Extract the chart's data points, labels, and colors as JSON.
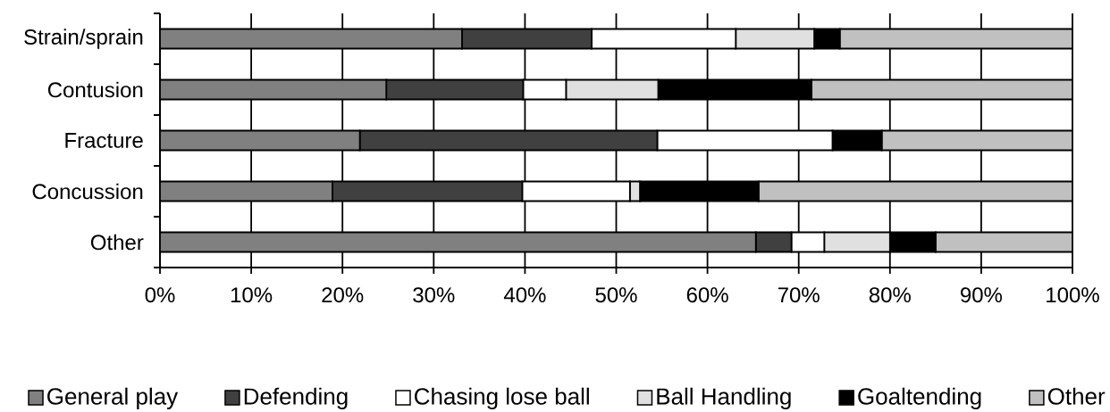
{
  "chart_data": {
    "type": "bar",
    "orientation": "horizontal",
    "stacked": true,
    "categories": [
      "Strain/sprain",
      "Contusion",
      "Fracture",
      "Concussion",
      "Other"
    ],
    "series": [
      {
        "name": "General play",
        "color": "#808080",
        "values": [
          33.1,
          24.8,
          21.9,
          18.9,
          65.3
        ]
      },
      {
        "name": "Defending",
        "color": "#404040",
        "values": [
          14.2,
          15.0,
          32.6,
          20.8,
          3.9
        ]
      },
      {
        "name": "Chasing lose ball",
        "color": "#ffffff",
        "values": [
          15.8,
          4.7,
          19.2,
          11.8,
          3.6
        ]
      },
      {
        "name": "Ball Handling",
        "color": "#e0e0e0",
        "values": [
          8.6,
          10.1,
          0,
          1.1,
          7.2
        ]
      },
      {
        "name": "Goaltending",
        "color": "#000000",
        "values": [
          2.8,
          16.8,
          5.4,
          13.0,
          5.0
        ]
      },
      {
        "name": "Other",
        "color": "#c0c0c0",
        "values": [
          25.5,
          28.6,
          20.9,
          34.4,
          15.0
        ]
      }
    ],
    "xlim": [
      0,
      100
    ],
    "xticks": [
      {
        "value": 0,
        "label": "0%"
      },
      {
        "value": 10,
        "label": "10%"
      },
      {
        "value": 20,
        "label": "20%"
      },
      {
        "value": 30,
        "label": "30%"
      },
      {
        "value": 40,
        "label": "40%"
      },
      {
        "value": 50,
        "label": "50%"
      },
      {
        "value": 60,
        "label": "60%"
      },
      {
        "value": 70,
        "label": "70%"
      },
      {
        "value": 80,
        "label": "80%"
      },
      {
        "value": 90,
        "label": "90%"
      },
      {
        "value": 100,
        "label": "100%"
      }
    ],
    "grid": "x",
    "legend": "bottom"
  }
}
